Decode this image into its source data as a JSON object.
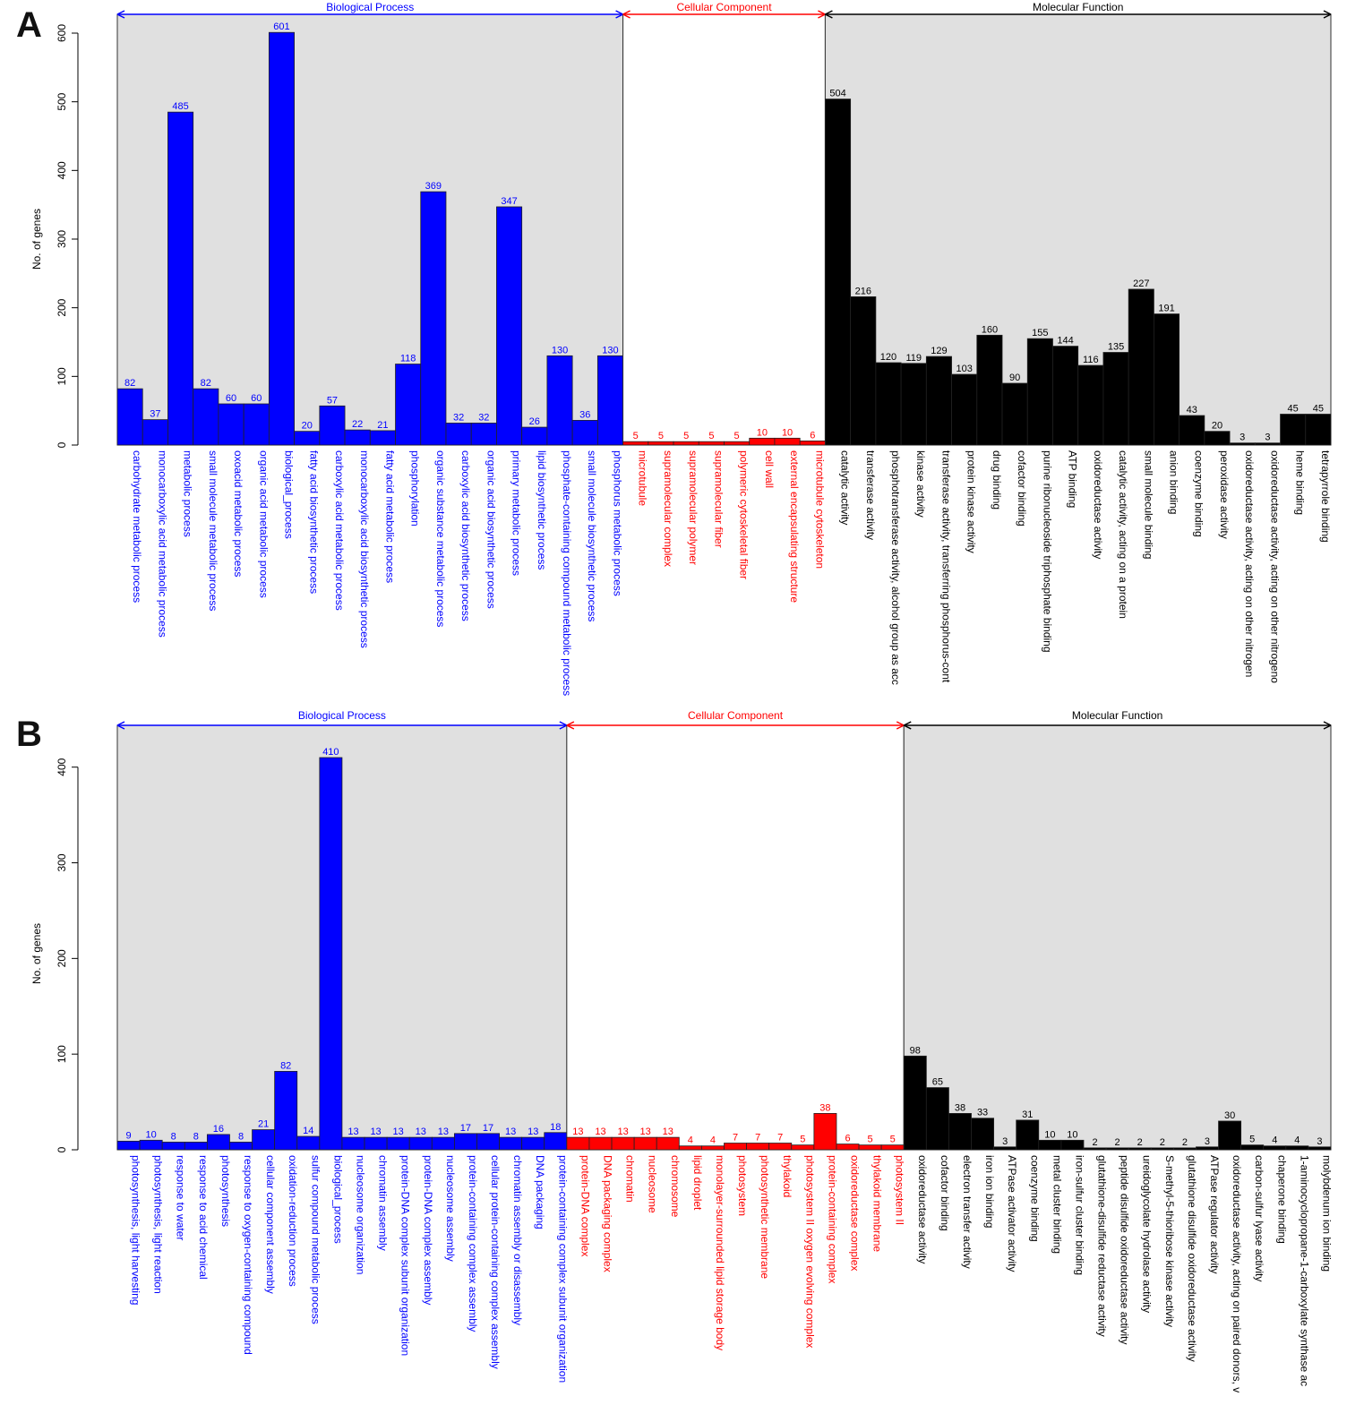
{
  "colors": {
    "biological_process": "#0000ff",
    "cellular_component": "#ff0000",
    "molecular_function": "#000000",
    "shaded_background": "#e0e0e0"
  },
  "chart_data": [
    {
      "panel": "A",
      "type": "bar",
      "ylabel": "No. of genes",
      "ylim": [
        0,
        600
      ],
      "yticks": [
        0,
        100,
        200,
        300,
        400,
        500,
        600
      ],
      "grid": false,
      "groups": [
        {
          "name": "Biological Process",
          "color": "#0000ff",
          "shaded": true,
          "categories": [
            "carbohydrate metabolic process",
            "monocarboxylic acid metabolic process",
            "metabolic process",
            "small molecule metabolic process",
            "oxoacid metabolic process",
            "organic acid metabolic process",
            "biological_process",
            "fatty acid biosynthetic process",
            "carboxylic acid metabolic process",
            "monocarboxylic acid biosynthetic process",
            "fatty acid metabolic process",
            "phosphorylation",
            "organic substance metabolic process",
            "carboxylic acid biosynthetic process",
            "organic acid biosynthetic process",
            "primary metabolic process",
            "lipid biosynthetic process",
            "phosphate-containing compound metabolic process",
            "small molecule biosynthetic process",
            "phosphorus metabolic process"
          ],
          "values": [
            82,
            37,
            485,
            82,
            60,
            60,
            601,
            20,
            57,
            22,
            21,
            118,
            369,
            32,
            32,
            347,
            26,
            130,
            36,
            130
          ]
        },
        {
          "name": "Cellular Component",
          "color": "#ff0000",
          "shaded": false,
          "categories": [
            "microtubule",
            "supramolecular complex",
            "supramolecular polymer",
            "supramolecular fiber",
            "polymeric cytoskeletal fiber",
            "cell wall",
            "external encapsulating structure",
            "microtubule cytoskeleton"
          ],
          "values": [
            5,
            5,
            5,
            5,
            5,
            10,
            10,
            6
          ]
        },
        {
          "name": "Molecular Function",
          "color": "#000000",
          "shaded": true,
          "categories": [
            "catalytic activity",
            "transferase activity",
            "phosphotransferase activity, alcohol group as acc",
            "kinase activity",
            "transferase activity, transferring phosphorus-cont",
            "protein kinase activity",
            "drug binding",
            "cofactor binding",
            "purine ribonucleoside triphosphate binding",
            "ATP binding",
            "oxidoreductase activity",
            "catalytic activity, acting on a protein",
            "small molecule binding",
            "anion binding",
            "coenzyme binding",
            "peroxidase activity",
            "oxidoreductase activity, acting on other nitrogen",
            "oxidoreductase activity, acting on other nitrogeno",
            "heme binding",
            "tetrapyrrole binding"
          ],
          "values": [
            504,
            216,
            120,
            119,
            129,
            103,
            160,
            90,
            155,
            144,
            116,
            135,
            227,
            191,
            43,
            20,
            3,
            3,
            45,
            45
          ]
        }
      ]
    },
    {
      "panel": "B",
      "type": "bar",
      "ylabel": "No. of genes",
      "ylim": [
        0,
        410
      ],
      "yticks": [
        0,
        100,
        200,
        300,
        400
      ],
      "grid": false,
      "groups": [
        {
          "name": "Biological Process",
          "color": "#0000ff",
          "shaded": true,
          "categories": [
            "photosynthesis, light harvesting",
            "photosynthesis, light reaction",
            "response to water",
            "response to acid chemical",
            "photosynthesis",
            "response to oxygen-containing compound",
            "cellular component assembly",
            "oxidation-reduction process",
            "sulfur compound metabolic process",
            "biological_process",
            "nucleosome organization",
            "chromatin assembly",
            "protein-DNA complex subunit organization",
            "protein-DNA complex assembly",
            "nucleosome assembly",
            "protein-containing complex assembly",
            "cellular protein-containing complex assembly",
            "chromatin assembly or disassembly",
            "DNA packaging",
            "protein-containing complex subunit organization"
          ],
          "values": [
            9,
            10,
            8,
            8,
            16,
            8,
            21,
            82,
            14,
            410,
            13,
            13,
            13,
            13,
            13,
            17,
            17,
            13,
            13,
            18
          ]
        },
        {
          "name": "Cellular Component",
          "color": "#ff0000",
          "shaded": false,
          "categories": [
            "protein-DNA complex",
            "DNA packaging complex",
            "chromatin",
            "nucleosome",
            "chromosome",
            "lipid droplet",
            "monolayer-surrounded lipid storage body",
            "photosystem",
            "photosynthetic membrane",
            "thylakoid",
            "photosystem II oxygen evolving complex",
            "protein-containing complex",
            "oxidoreductase complex",
            "thylakoid membrane",
            "photosystem II"
          ],
          "values": [
            13,
            13,
            13,
            13,
            13,
            4,
            4,
            7,
            7,
            7,
            5,
            38,
            6,
            5,
            5
          ]
        },
        {
          "name": "Molecular Function",
          "color": "#000000",
          "shaded": true,
          "categories": [
            "oxidoreductase activity",
            "cofactor binding",
            "electron transfer activity",
            "iron ion binding",
            "ATPase activator activity",
            "coenzyme binding",
            "metal cluster binding",
            "iron-sulfur cluster binding",
            "glutathione-disulfide reductase activity",
            "peptide disulfide oxidoreductase activity",
            "ureidoglycolate hydrolase activity",
            "S-methyl-5-thioribose kinase activity",
            "glutathione disulfide oxidoreductase activity",
            "ATPase regulator activity",
            "oxidoreductase activity, acting on paired donors, v",
            "carbon-sulfur lyase activity",
            "chaperone binding",
            "1-aminocyclopropane-1-carboxylate synthase ac",
            "molybdenum ion binding"
          ],
          "values": [
            98,
            65,
            38,
            33,
            3,
            31,
            10,
            10,
            2,
            2,
            2,
            2,
            2,
            3,
            30,
            5,
            4,
            4,
            3
          ]
        }
      ]
    }
  ]
}
